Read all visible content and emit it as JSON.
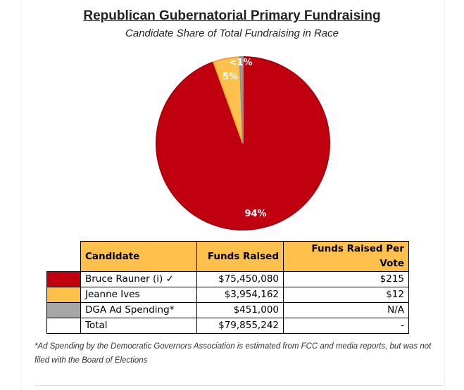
{
  "chart_data": {
    "type": "pie",
    "title": "Republican Gubernatorial Primary Fundraising",
    "subtitle": "Candidate Share of Total Fundraising in Race",
    "slices": [
      {
        "name": "Bruce Rauner (i)",
        "value": 75450080,
        "label": "94%",
        "color": "#c0000f"
      },
      {
        "name": "Jeanne Ives",
        "value": 3954162,
        "label": "5%",
        "color": "#ffc04c"
      },
      {
        "name": "DGA Ad Spending",
        "value": 451000,
        "label": "<1%",
        "color": "#a6a6a6"
      }
    ]
  },
  "table": {
    "headers": [
      "Candidate",
      "Funds Raised",
      "Funds Raised Per Vote"
    ],
    "rows": [
      {
        "color": "#c0000f",
        "candidate": "Bruce Rauner (i) ✓",
        "funds": "$75,450,080",
        "per_vote": "$215"
      },
      {
        "color": "#ffc04c",
        "candidate": "Jeanne Ives",
        "funds": "$3,954,162",
        "per_vote": "$12"
      },
      {
        "color": "#a6a6a6",
        "candidate": "DGA Ad Spending*",
        "funds": "$451,000",
        "per_vote": "N/A"
      },
      {
        "color": "#ffffff",
        "candidate": "Total",
        "funds": "$79,855,242",
        "per_vote": "-"
      }
    ]
  },
  "footnote": "*Ad Spending by the Democratic Governors Association is estimated from FCC and media reports, but was not filed with the Board of Elections"
}
